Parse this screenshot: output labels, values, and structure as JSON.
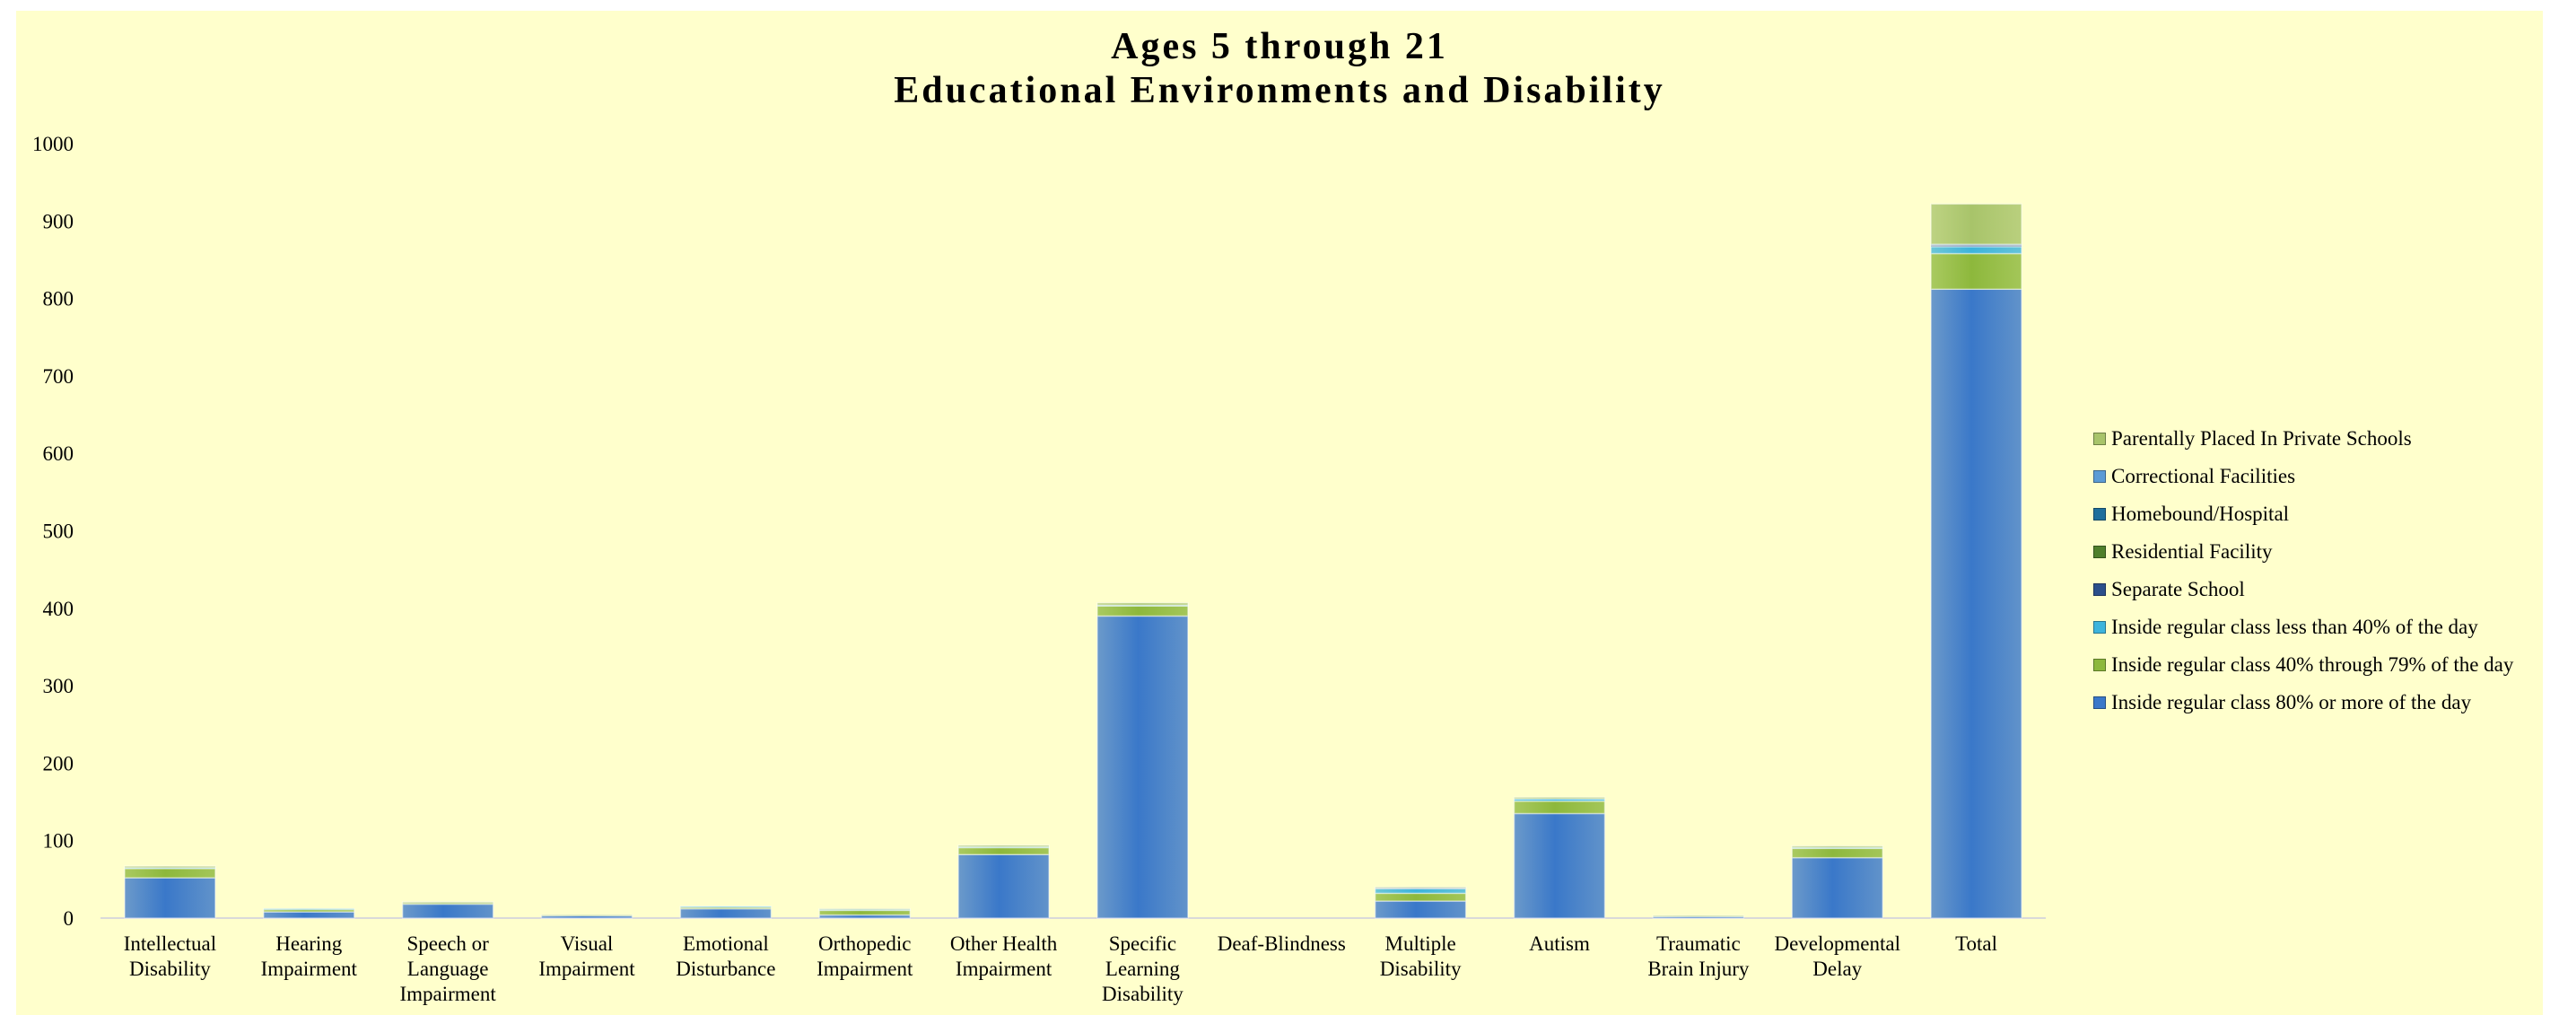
{
  "chart_data": {
    "type": "bar",
    "stacked": true,
    "title": [
      "Ages 5 through 21",
      "Educational Environments and Disability"
    ],
    "xlabel": "",
    "ylabel": "",
    "ylim": [
      0,
      1000
    ],
    "yticks": [
      "0",
      "100",
      "200",
      "300",
      "400",
      "500",
      "600",
      "700",
      "800",
      "900",
      "1000"
    ],
    "grid": false,
    "legend_position": "right",
    "categories": [
      [
        "Intellectual",
        "Disability"
      ],
      [
        "Hearing",
        "Impairment"
      ],
      [
        "Speech or",
        "Language",
        "Impairment"
      ],
      [
        "Visual",
        "Impairment"
      ],
      [
        "Emotional",
        "Disturbance"
      ],
      [
        "Orthopedic",
        "Impairment"
      ],
      [
        "Other Health",
        "Impairment"
      ],
      [
        "Specific",
        "Learning",
        "Disability"
      ],
      [
        "Deaf-Blindness"
      ],
      [
        "Multiple",
        "Disability"
      ],
      [
        "Autism"
      ],
      [
        "Traumatic",
        "Brain Injury"
      ],
      [
        "Developmental",
        "Delay"
      ],
      [
        "Total"
      ]
    ],
    "series": [
      {
        "name": "Inside regular class 80% or more of the day",
        "color": "#3a78c9",
        "values": [
          52,
          8,
          18,
          3,
          12,
          4,
          82,
          390,
          0,
          22,
          135,
          2,
          78,
          812
        ]
      },
      {
        "name": "Inside regular class 40% through 79% of the day",
        "color": "#8db83c",
        "values": [
          12,
          3,
          2,
          1,
          2,
          6,
          9,
          13,
          0,
          10,
          16,
          1,
          12,
          46
        ]
      },
      {
        "name": "Inside regular class less than 40% of the day",
        "color": "#3db4dc",
        "values": [
          1,
          1,
          0,
          0,
          1,
          1,
          1,
          1,
          0,
          6,
          3,
          0,
          1,
          9
        ]
      },
      {
        "name": "Separate School",
        "color": "#2b4f8a",
        "values": [
          0,
          0,
          0,
          0,
          0,
          0,
          0,
          0,
          0,
          1,
          0,
          0,
          0,
          2
        ]
      },
      {
        "name": "Residential Facility",
        "color": "#4f7f2c",
        "values": [
          0,
          0,
          0,
          0,
          0,
          0,
          0,
          0,
          0,
          0,
          0,
          0,
          0,
          0
        ]
      },
      {
        "name": "Homebound/Hospital",
        "color": "#1f6f9c",
        "values": [
          0,
          0,
          0,
          0,
          0,
          0,
          0,
          0,
          0,
          0,
          0,
          0,
          0,
          1
        ]
      },
      {
        "name": "Correctional Facilities",
        "color": "#5b9bd5",
        "values": [
          0,
          0,
          0,
          0,
          0,
          0,
          0,
          0,
          0,
          0,
          0,
          0,
          0,
          0
        ]
      },
      {
        "name": "Parentally Placed In Private Schools",
        "color": "#a8c46a",
        "values": [
          2,
          0,
          1,
          0,
          0,
          1,
          2,
          3,
          0,
          1,
          2,
          0,
          2,
          52
        ]
      }
    ]
  }
}
